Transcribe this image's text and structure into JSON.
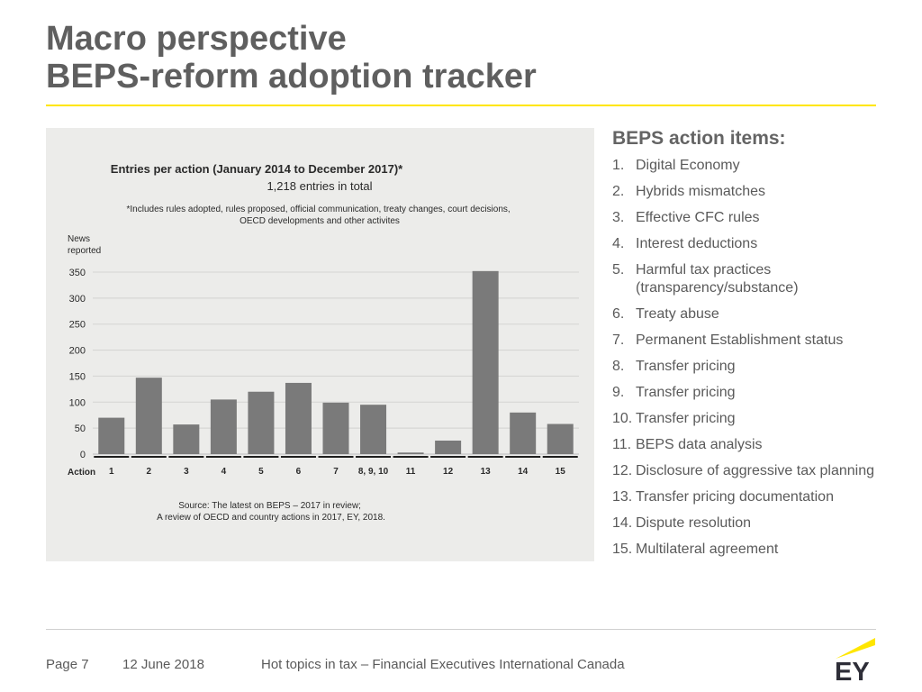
{
  "title": {
    "line1": "Macro perspective",
    "line2": "BEPS-reform adoption tracker"
  },
  "chart_data": {
    "type": "bar",
    "title": "Entries per action (January 2014 to December 2017)*",
    "subtitle": "1,218 entries in total",
    "note": "*Includes rules adopted, rules proposed, official communication, treaty changes, court decisions, OECD developments and other activites",
    "ylabel_line1": "News",
    "ylabel_line2": "reported",
    "xlabel": "Action",
    "categories": [
      "1",
      "2",
      "3",
      "4",
      "5",
      "6",
      "7",
      "8, 9, 10",
      "11",
      "12",
      "13",
      "14",
      "15"
    ],
    "values": [
      70,
      147,
      57,
      105,
      120,
      137,
      99,
      95,
      3,
      26,
      352,
      80,
      58
    ],
    "ylim": [
      0,
      350
    ],
    "yticks": [
      0,
      50,
      100,
      150,
      200,
      250,
      300,
      350
    ],
    "grid": true,
    "bar_color": "#7a7a7a",
    "source_line1": "Source: The latest on BEPS – 2017 in review;",
    "source_line2": "A review of OECD and country actions in 2017, EY, 2018."
  },
  "action_items": {
    "heading": "BEPS action items:",
    "items": [
      {
        "num": "1.",
        "text": "Digital Economy"
      },
      {
        "num": "2.",
        "text": "Hybrids mismatches"
      },
      {
        "num": "3.",
        "text": "Effective CFC rules"
      },
      {
        "num": "4.",
        "text": "Interest deductions"
      },
      {
        "num": "5.",
        "text": "Harmful tax practices (transparency/substance)"
      },
      {
        "num": "6.",
        "text": "Treaty abuse"
      },
      {
        "num": "7.",
        "text": "Permanent Establishment status"
      },
      {
        "num": "8.",
        "text": "Transfer pricing"
      },
      {
        "num": "9.",
        "text": "Transfer pricing"
      },
      {
        "num": "10.",
        "text": "Transfer pricing"
      },
      {
        "num": "11.",
        "text": "BEPS data analysis"
      },
      {
        "num": "12.",
        "text": "Disclosure of aggressive tax planning"
      },
      {
        "num": "13.",
        "text": "Transfer pricing documentation"
      },
      {
        "num": "14.",
        "text": "Dispute resolution"
      },
      {
        "num": "15.",
        "text": "Multilateral agreement"
      }
    ]
  },
  "footer": {
    "page": "Page 7",
    "date": "12 June 2018",
    "event": "Hot topics in tax – Financial Executives International Canada"
  },
  "logo": {
    "text": "EY",
    "accent_color": "#ffe600"
  }
}
